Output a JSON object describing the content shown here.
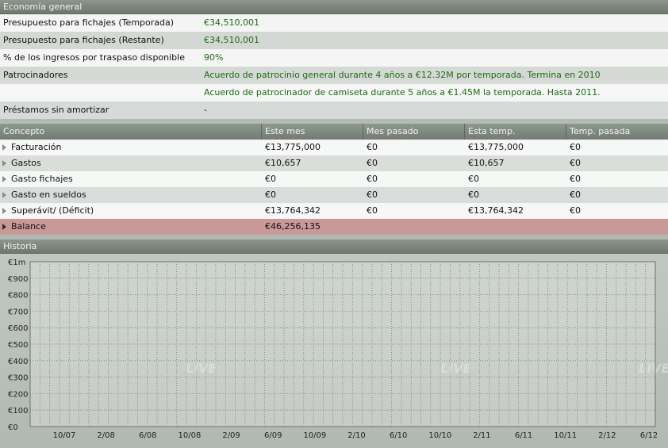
{
  "economy": {
    "title": "Economía general",
    "rows": [
      {
        "label": "Presupuesto para fichajes (Temporada)",
        "value": "€34,510,001"
      },
      {
        "label": "Presupuesto para fichajes (Restante)",
        "value": "€34,510,001"
      },
      {
        "label": "% de los ingresos por traspaso disponible",
        "value": "90%"
      },
      {
        "label": "Patrocinadores",
        "value": "Acuerdo de patrocinio general durante 4 años a €12.32M por temporada. Termina en 2010"
      },
      {
        "label": "",
        "value": "Acuerdo de patrocinador de camiseta durante 5 años a €1.45M la temporada. Hasta 2011."
      },
      {
        "label": "Préstamos sin amortizar",
        "value": "-"
      }
    ]
  },
  "finance_table": {
    "columns": [
      "Concepto",
      "Este mes",
      "Mes pasado",
      "Esta temp.",
      "Temp. pasada"
    ],
    "rows": [
      {
        "concept": "Facturación",
        "este_mes": "€13,775,000",
        "mes_pasado": "€0",
        "esta_temp": "€13,775,000",
        "temp_pasada": "€0"
      },
      {
        "concept": "Gastos",
        "este_mes": "€10,657",
        "mes_pasado": "€0",
        "esta_temp": "€10,657",
        "temp_pasada": "€0"
      },
      {
        "concept": "Gasto fichajes",
        "este_mes": "€0",
        "mes_pasado": "€0",
        "esta_temp": "€0",
        "temp_pasada": "€0"
      },
      {
        "concept": "Gasto en sueldos",
        "este_mes": "€0",
        "mes_pasado": "€0",
        "esta_temp": "€0",
        "temp_pasada": "€0"
      },
      {
        "concept": "Superávit/ (Déficit)",
        "este_mes": "€13,764,342",
        "mes_pasado": "€0",
        "esta_temp": "€13,764,342",
        "temp_pasada": "€0"
      },
      {
        "concept": "Balance",
        "este_mes": "€46,256,135",
        "mes_pasado": "",
        "esta_temp": "",
        "temp_pasada": ""
      }
    ]
  },
  "history": {
    "title": "Historia"
  },
  "watermark_text": "LIVE",
  "chart_data": {
    "type": "line",
    "title": "",
    "xlabel": "",
    "ylabel": "",
    "y_tick_labels": [
      "€1m",
      "€900",
      "€800",
      "€700",
      "€600",
      "€500",
      "€400",
      "€300",
      "€200",
      "€100",
      "€0"
    ],
    "x_tick_labels": [
      "10/07",
      "2/08",
      "6/08",
      "10/08",
      "2/09",
      "6/09",
      "10/09",
      "2/10",
      "6/10",
      "10/10",
      "2/11",
      "6/11",
      "10/11",
      "2/12",
      "6/12"
    ],
    "series": [],
    "grid": true
  },
  "colors": {
    "positive_value": "#1d6b14",
    "balance_row": "#c99899",
    "header": "#7d867d"
  }
}
